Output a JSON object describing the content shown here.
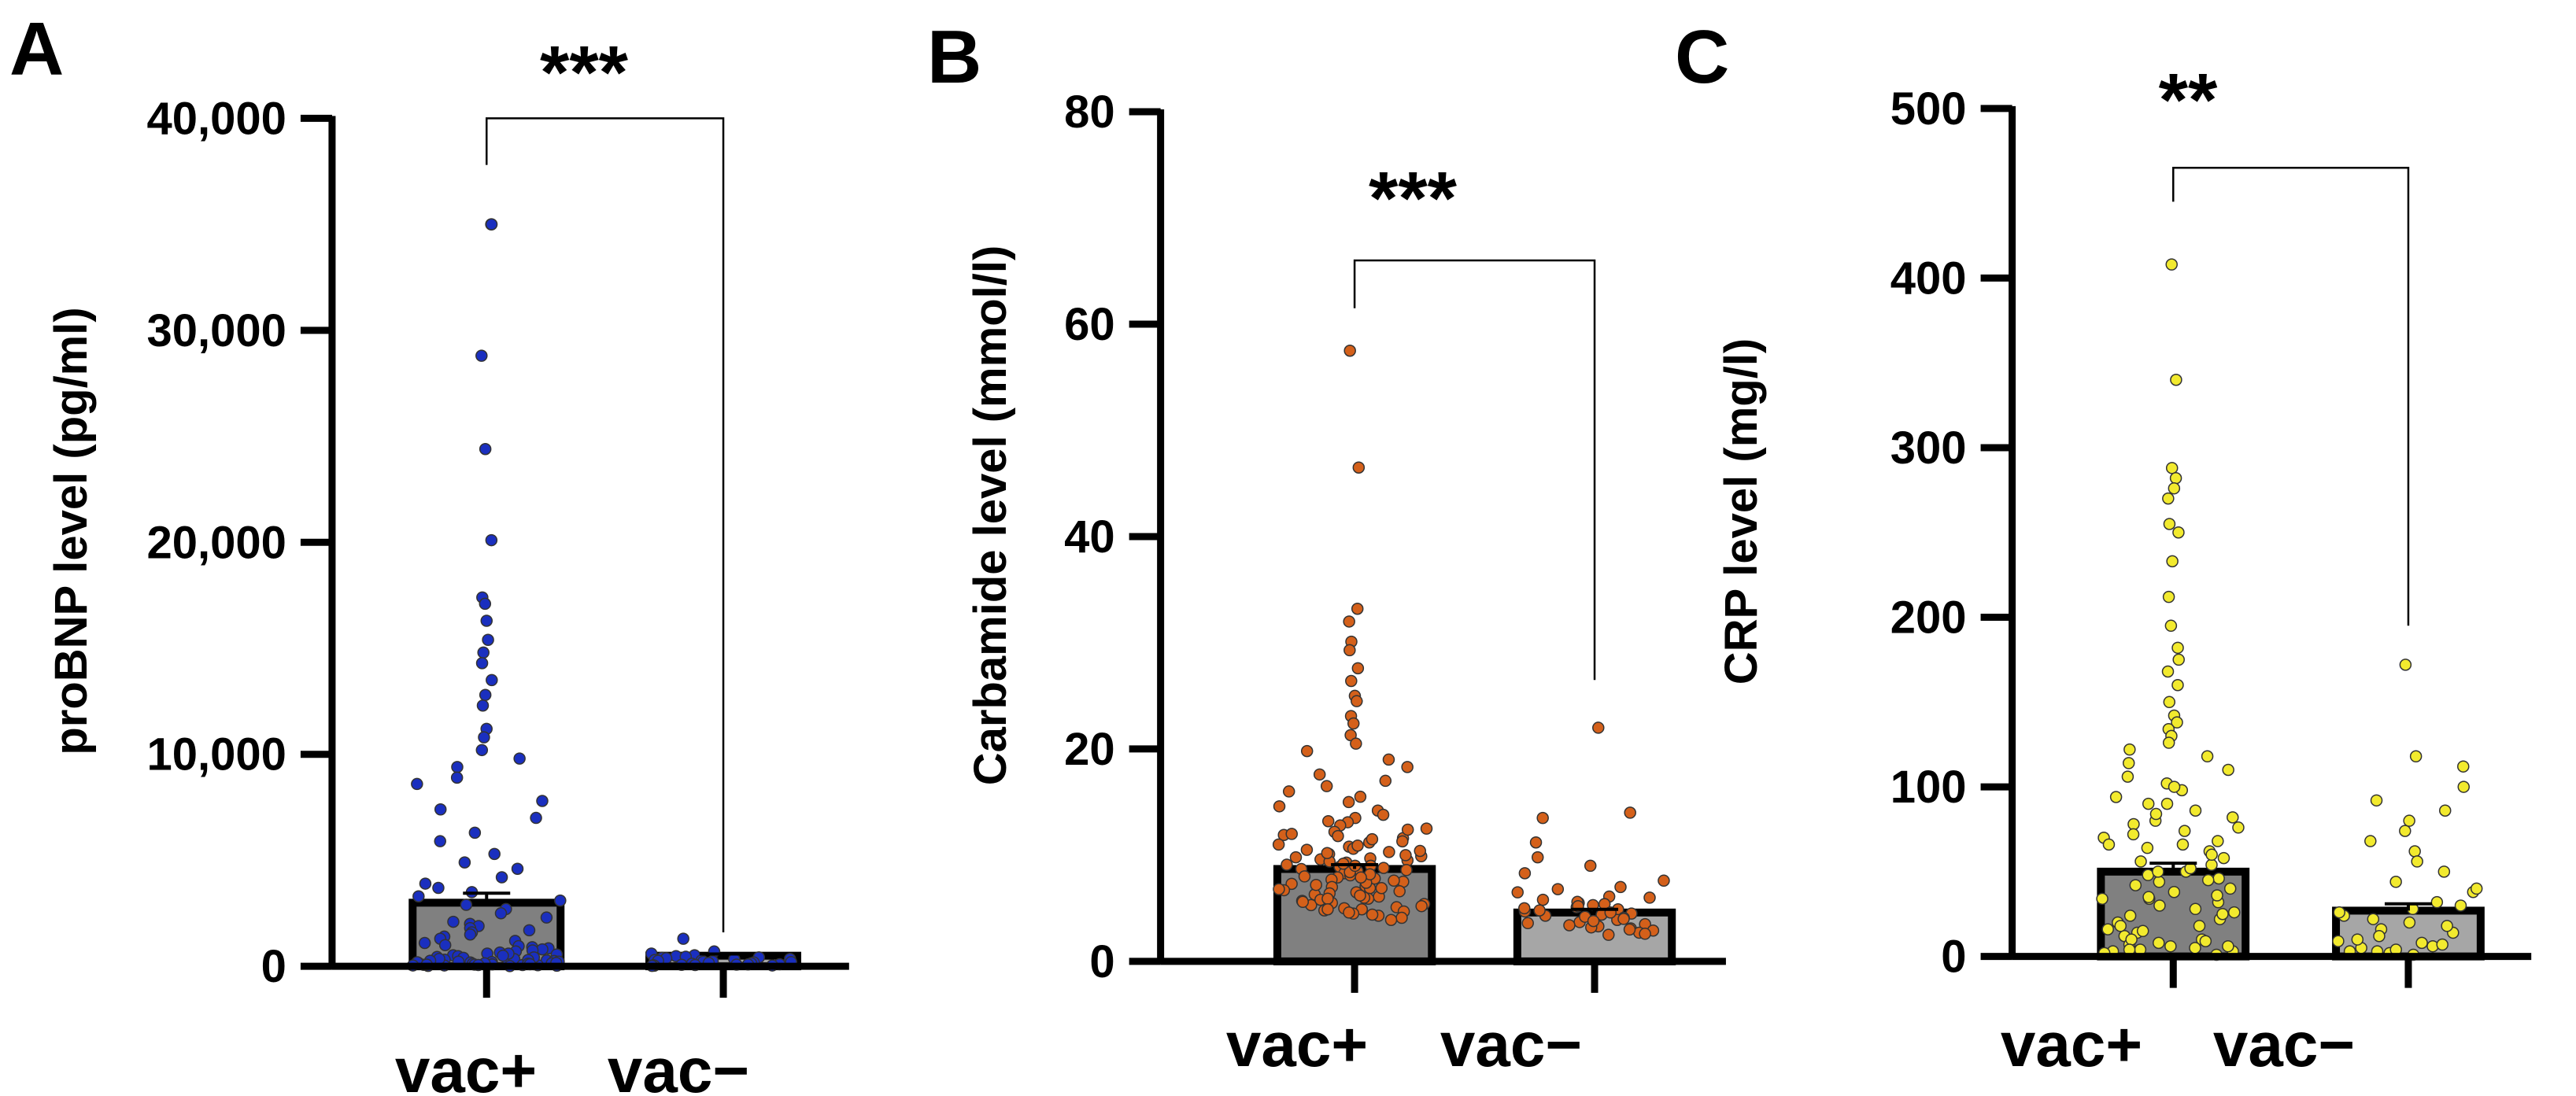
{
  "chart_data": [
    {
      "panel": "A",
      "type": "bar",
      "ylabel": "proBNP level (pg/ml)",
      "ylim": [
        0,
        40000
      ],
      "yticks": [
        "0",
        "10,000",
        "20,000",
        "30,000",
        "40,000"
      ],
      "yticks_values": [
        0,
        10000,
        20000,
        30000,
        40000
      ],
      "categories": [
        "vac+",
        "vac−"
      ],
      "values": [
        3000,
        500
      ],
      "sem": [
        450,
        80
      ],
      "bar_colors": [
        "#808080",
        "#a6a6a6"
      ],
      "point_color": "#1a2fbf",
      "significance": "***",
      "bracket_top": 40000,
      "bracket_left_bottom": 37800,
      "bracket_right_bottom": 1600,
      "points": [
        [
          35000,
          35000,
          28800,
          24400,
          20100,
          17400,
          17100,
          16300,
          15400,
          14800,
          14300,
          13500,
          12800,
          12300,
          11200,
          10800,
          10200,
          9800,
          9400,
          8900,
          8600,
          7800,
          7400,
          7000,
          6300,
          5900,
          5300,
          4900,
          4600,
          4200,
          3900,
          3700,
          3500,
          3300,
          3100,
          2900,
          2700,
          2500,
          2300,
          2100,
          2000,
          1900,
          1800,
          1700,
          1600,
          1500,
          1400,
          1300,
          1200,
          1100,
          1000,
          950,
          900,
          850,
          800,
          750,
          700,
          650,
          600,
          560,
          520,
          480,
          440,
          400,
          370,
          340,
          310,
          280,
          250,
          220,
          200,
          180,
          160,
          140,
          120,
          100,
          90,
          80,
          70,
          60,
          50,
          40,
          30,
          20,
          10,
          600,
          500,
          420,
          350,
          300,
          260,
          220,
          190,
          160,
          140,
          120,
          100,
          80,
          60,
          40
        ],
        [
          1300,
          700,
          600,
          520,
          480,
          450,
          420,
          400,
          380,
          350,
          330,
          300,
          280,
          260,
          240,
          220,
          200,
          180,
          160,
          140,
          120,
          100,
          90,
          80,
          70,
          60,
          50,
          40,
          30,
          20
        ]
      ]
    },
    {
      "panel": "B",
      "type": "bar",
      "ylabel": "Carbamide level (mmol/l)",
      "ylim": [
        0,
        80
      ],
      "yticks": [
        "0",
        "20",
        "40",
        "60",
        "80"
      ],
      "yticks_values": [
        0,
        20,
        40,
        60,
        80
      ],
      "categories": [
        "vac+",
        "vac−"
      ],
      "values": [
        8.7,
        4.6
      ],
      "sem": [
        0.4,
        0.3
      ],
      "bar_colors": [
        "#808080",
        "#a6a6a6"
      ],
      "point_color": "#d4601a",
      "significance": "***",
      "bracket_top": 66,
      "bracket_left_bottom": 61.5,
      "bracket_right_bottom": 26.5,
      "points": [
        [
          57.5,
          46.5,
          33.2,
          32.0,
          30.1,
          29.3,
          27.6,
          26.4,
          25.0,
          24.5,
          23.1,
          22.4,
          21.3,
          20.5,
          19.8,
          19.0,
          18.3,
          17.6,
          17.0,
          16.5,
          16.0,
          15.5,
          15.0,
          14.6,
          14.2,
          13.8,
          13.5,
          13.1,
          12.8,
          12.5,
          12.2,
          11.9,
          11.6,
          11.3,
          11.0,
          10.8,
          10.5,
          10.3,
          10.1,
          9.9,
          9.7,
          9.5,
          9.3,
          9.1,
          8.9,
          8.7,
          8.5,
          8.3,
          8.1,
          7.9,
          7.7,
          7.5,
          7.3,
          7.1,
          6.9,
          6.7,
          6.5,
          6.3,
          6.1,
          5.9,
          5.7,
          5.5,
          5.3,
          5.1,
          4.9,
          4.7,
          4.5,
          4.3,
          4.1,
          3.9,
          12.0,
          11.2,
          10.4,
          9.6,
          9.0,
          8.4,
          7.8,
          7.2,
          6.6,
          6.0,
          5.4,
          4.8,
          10.6,
          9.8,
          9.2,
          8.6,
          8.0,
          7.4,
          6.8,
          6.2,
          5.6,
          5.0,
          4.4,
          11.5,
          10.9,
          10.0,
          9.4,
          8.8,
          8.2,
          7.6,
          7.0,
          6.4,
          5.8,
          5.2,
          4.6,
          13.2,
          12.4,
          11.8,
          10.2,
          9.0,
          7.9,
          6.9,
          5.9,
          4.9
        ],
        [
          22.0,
          14.0,
          13.5,
          11.2,
          9.8,
          9.0,
          8.3,
          7.6,
          7.0,
          6.5,
          6.1,
          5.8,
          5.5,
          5.3,
          5.1,
          4.9,
          4.7,
          4.5,
          4.3,
          4.1,
          3.9,
          3.7,
          3.5,
          3.3,
          3.1,
          2.9,
          2.7,
          2.5,
          6.8,
          6.0,
          5.6,
          5.2,
          4.8,
          4.4,
          4.0,
          3.6,
          3.2,
          5.4,
          5.0,
          4.6,
          4.2,
          3.8,
          3.4,
          3.0,
          2.6
        ]
      ]
    },
    {
      "panel": "C",
      "type": "bar",
      "ylabel": "CRP level (mg/l)",
      "ylim": [
        0,
        500
      ],
      "yticks": [
        "0",
        "100",
        "200",
        "300",
        "400",
        "500"
      ],
      "yticks_values": [
        0,
        100,
        200,
        300,
        400,
        500
      ],
      "categories": [
        "vac+",
        "vac−"
      ],
      "values": [
        50,
        27
      ],
      "sem": [
        5,
        4
      ],
      "bar_colors": [
        "#808080",
        "#a6a6a6"
      ],
      "point_color": "#f2ea2e",
      "significance": "**",
      "bracket_top": 465,
      "bracket_left_bottom": 445,
      "bracket_right_bottom": 195,
      "points": [
        [
          408,
          340,
          288,
          282,
          276,
          270,
          255,
          250,
          233,
          212,
          195,
          182,
          175,
          168,
          160,
          150,
          142,
          138,
          134,
          130,
          126,
          122,
          118,
          114,
          110,
          106,
          102,
          98,
          94,
          90,
          86,
          82,
          78,
          74,
          70,
          66,
          62,
          58,
          54,
          50,
          46,
          42,
          38,
          34,
          30,
          26,
          22,
          18,
          14,
          10,
          6,
          3,
          80,
          72,
          64,
          56,
          48,
          40,
          32,
          24,
          16,
          8,
          4,
          2,
          90,
          76,
          60,
          44,
          28,
          12,
          5,
          1,
          68,
          52,
          36,
          20,
          9,
          3,
          100,
          84,
          66,
          50,
          34,
          18,
          7,
          2,
          45,
          35,
          25,
          15,
          10,
          6,
          4
        ],
        [
          172,
          118,
          112,
          100,
          92,
          86,
          80,
          74,
          68,
          62,
          56,
          50,
          44,
          38,
          32,
          28,
          24,
          20,
          16,
          12,
          8,
          5,
          3,
          2,
          1,
          30,
          22,
          14,
          9,
          6,
          4,
          40,
          26,
          18,
          10,
          7,
          3
        ]
      ]
    }
  ]
}
